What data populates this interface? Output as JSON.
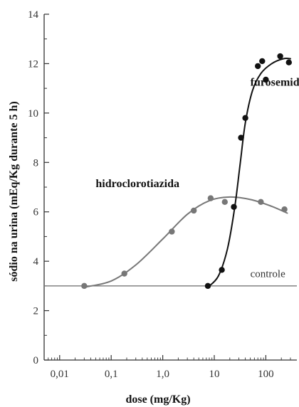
{
  "chart_data": {
    "type": "scatter",
    "xlabel": "dose (mg/Kg)",
    "ylabel": "sódio na urina (mEq/Kg durante 5 h)",
    "x_scale": "log",
    "xlim": [
      0.005,
      400
    ],
    "ylim": [
      0,
      14
    ],
    "x_ticks": [
      {
        "value": 0.01,
        "label": "0,01"
      },
      {
        "value": 0.1,
        "label": "0,1"
      },
      {
        "value": 1,
        "label": "1,0"
      },
      {
        "value": 10,
        "label": "10"
      },
      {
        "value": 100,
        "label": "100"
      }
    ],
    "y_ticks": [
      {
        "value": 0,
        "label": "0"
      },
      {
        "value": 2,
        "label": "2"
      },
      {
        "value": 4,
        "label": "4"
      },
      {
        "value": 6,
        "label": "6"
      },
      {
        "value": 8,
        "label": "8"
      },
      {
        "value": 10,
        "label": "10"
      },
      {
        "value": 12,
        "label": "12"
      },
      {
        "value": 14,
        "label": "14"
      }
    ],
    "grid": false,
    "series": [
      {
        "name": "hidroclorotiazida",
        "color": "#777777",
        "points": [
          {
            "x": 0.03,
            "y": 3.0
          },
          {
            "x": 0.18,
            "y": 3.5
          },
          {
            "x": 1.5,
            "y": 5.2
          },
          {
            "x": 4.0,
            "y": 6.05
          },
          {
            "x": 8.5,
            "y": 6.55
          },
          {
            "x": 16,
            "y": 6.4
          },
          {
            "x": 80,
            "y": 6.4
          },
          {
            "x": 230,
            "y": 6.1
          }
        ],
        "curve": [
          {
            "x": 0.03,
            "y": 2.95
          },
          {
            "x": 0.1,
            "y": 3.2
          },
          {
            "x": 0.3,
            "y": 3.85
          },
          {
            "x": 1.0,
            "y": 4.9
          },
          {
            "x": 3.0,
            "y": 5.9
          },
          {
            "x": 8.0,
            "y": 6.45
          },
          {
            "x": 20,
            "y": 6.6
          },
          {
            "x": 50,
            "y": 6.5
          },
          {
            "x": 120,
            "y": 6.25
          },
          {
            "x": 260,
            "y": 5.95
          }
        ]
      },
      {
        "name": "furosemida",
        "color": "#111111",
        "points": [
          {
            "x": 7.5,
            "y": 3.0
          },
          {
            "x": 14,
            "y": 3.65
          },
          {
            "x": 24,
            "y": 6.2
          },
          {
            "x": 33,
            "y": 9.0
          },
          {
            "x": 40,
            "y": 9.8
          },
          {
            "x": 70,
            "y": 11.9
          },
          {
            "x": 85,
            "y": 12.1
          },
          {
            "x": 100,
            "y": 11.35
          },
          {
            "x": 190,
            "y": 12.3
          },
          {
            "x": 280,
            "y": 12.05
          }
        ],
        "curve": [
          {
            "x": 7.5,
            "y": 2.95
          },
          {
            "x": 12,
            "y": 3.4
          },
          {
            "x": 18,
            "y": 4.5
          },
          {
            "x": 25,
            "y": 6.2
          },
          {
            "x": 32,
            "y": 8.0
          },
          {
            "x": 40,
            "y": 9.6
          },
          {
            "x": 55,
            "y": 10.9
          },
          {
            "x": 80,
            "y": 11.6
          },
          {
            "x": 130,
            "y": 12.0
          },
          {
            "x": 220,
            "y": 12.2
          },
          {
            "x": 300,
            "y": 12.2
          }
        ]
      }
    ],
    "reference_line": {
      "label": "controle",
      "y": 3.0,
      "color": "#777777"
    },
    "annotations": [
      {
        "text": "furosemida",
        "x": 50,
        "y": 11.1
      },
      {
        "text": "hidroclorotiazida",
        "x": 0.05,
        "y": 7.0
      },
      {
        "text": "controle",
        "x": 50,
        "y": 3.35
      }
    ]
  }
}
